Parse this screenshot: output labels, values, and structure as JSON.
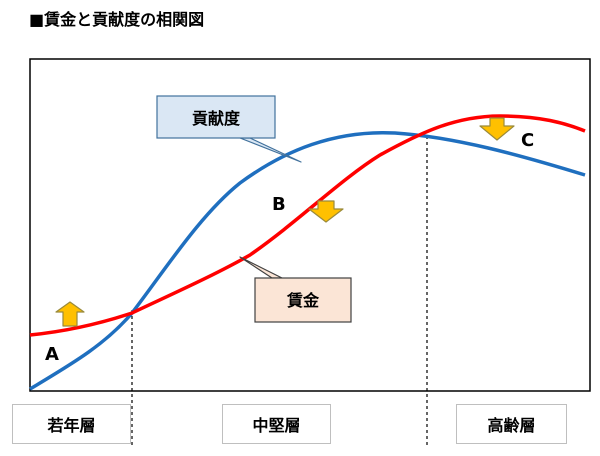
{
  "title": "■賃金と貢献度の相関図",
  "callouts": {
    "contribution": "貢献度",
    "wage": "賃金"
  },
  "points": {
    "a": "A",
    "b": "B",
    "c": "C"
  },
  "segments": [
    "若年層",
    "中堅層",
    "高齢層"
  ],
  "colors": {
    "contribution_line": "#1f6fbf",
    "wage_line": "#ff0000",
    "arrow_fill": "#ffc000",
    "arrow_stroke": "#9a8a3a",
    "contribution_callout_fill": "#dae7f4",
    "contribution_callout_stroke": "#41719c",
    "wage_callout_fill": "#fbe5d6",
    "wage_callout_stroke": "#404040"
  }
}
